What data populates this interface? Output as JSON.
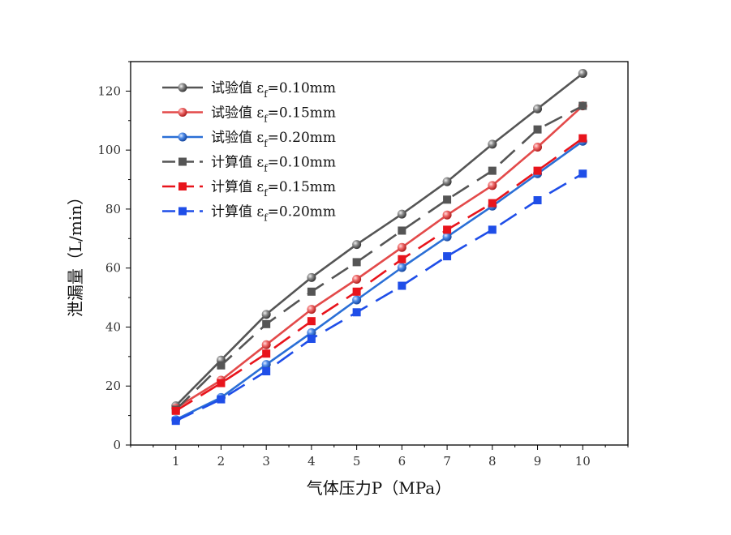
{
  "chart_data": {
    "type": "line",
    "xlabel": "气体压力P（MPa）",
    "ylabel": "泄漏量（L/min）",
    "x": [
      1,
      2,
      3,
      4,
      5,
      6,
      7,
      8,
      9,
      10
    ],
    "xlim": [
      0,
      11
    ],
    "ylim": [
      0,
      130
    ],
    "xticks": [
      1,
      2,
      3,
      4,
      5,
      6,
      7,
      8,
      9,
      10
    ],
    "yticks": [
      0,
      20,
      40,
      60,
      80,
      100,
      120
    ],
    "legend_position": "top-left",
    "grid": false,
    "series": [
      {
        "name": "试验值 εf=0.10mm",
        "prefix": "试验值 ",
        "symbol": "ε",
        "sub": "f",
        "suffix": "=0.10mm",
        "marker": "sphere",
        "dash": "solid",
        "color": "#555555",
        "values": [
          13.3,
          28.8,
          44.3,
          56.8,
          68,
          78.3,
          89.3,
          102,
          114,
          126
        ]
      },
      {
        "name": "试验值 εf=0.15mm",
        "prefix": "试验值 ",
        "symbol": "ε",
        "sub": "f",
        "suffix": "=0.15mm",
        "marker": "sphere",
        "dash": "solid",
        "color": "#e34a4a",
        "values": [
          12.5,
          22,
          34,
          46,
          56.2,
          67,
          78,
          88,
          101,
          115
        ]
      },
      {
        "name": "试验值 εf=0.20mm",
        "prefix": "试验值 ",
        "symbol": "ε",
        "sub": "f",
        "suffix": "=0.20mm",
        "marker": "sphere",
        "dash": "solid",
        "color": "#2a6fd6",
        "values": [
          8.6,
          16.1,
          27.3,
          38.1,
          49.2,
          60.2,
          70.6,
          81,
          92,
          103
        ]
      },
      {
        "name": "计算值 εf=0.10mm",
        "prefix": "计算值 ",
        "symbol": "ε",
        "sub": "f",
        "suffix": "=0.10mm",
        "marker": "square",
        "dash": "dashed",
        "color": "#555555",
        "values": [
          12,
          27,
          41,
          52,
          62,
          72.7,
          83.2,
          93,
          107,
          115
        ]
      },
      {
        "name": "计算值 εf=0.15mm",
        "prefix": "计算值 ",
        "symbol": "ε",
        "sub": "f",
        "suffix": "=0.15mm",
        "marker": "square",
        "dash": "dashed",
        "color": "#e8141c",
        "values": [
          11.6,
          21,
          31,
          42,
          52,
          63,
          73,
          82,
          93,
          104
        ]
      },
      {
        "name": "计算值 εf=0.20mm",
        "prefix": "计算值 ",
        "symbol": "ε",
        "sub": "f",
        "suffix": "=0.20mm",
        "marker": "square",
        "dash": "dashed",
        "color": "#1f4ee8",
        "values": [
          8.2,
          15.5,
          25,
          36,
          45,
          54,
          64,
          73,
          83,
          92
        ]
      }
    ]
  }
}
